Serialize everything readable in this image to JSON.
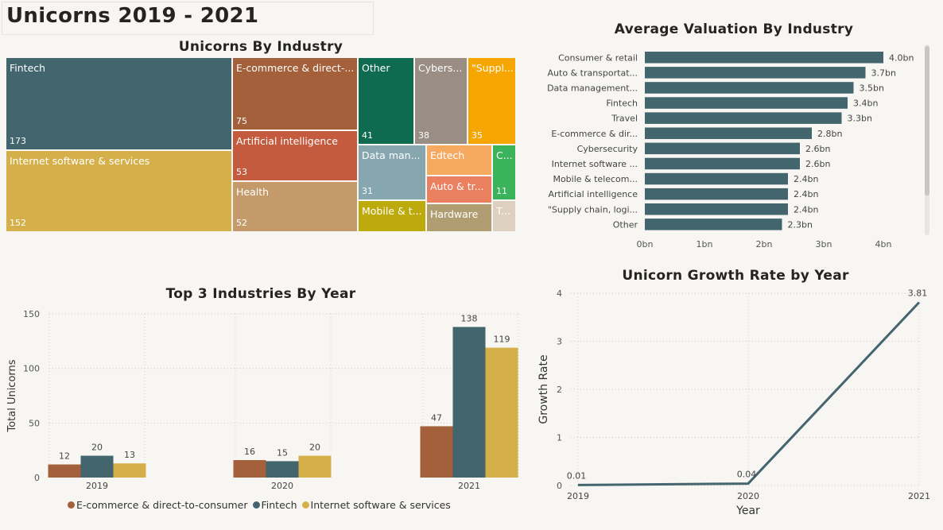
{
  "page": {
    "title": "Unicorns 2019 - 2021"
  },
  "colors": {
    "teal": "#43656e",
    "brown": "#a3603a",
    "gold": "#d5b04a",
    "green": "#0e6b50",
    "taupe": "#9a8e84",
    "orange": "#f5a600",
    "rust": "#c45a3e",
    "tan": "#c49a6a",
    "lightblue": "#86a6b0",
    "peach": "#f5aa60",
    "salmon": "#ea8060",
    "olive": "#bdab0d",
    "khaki": "#b09e72",
    "brightgreen": "#3bb35a",
    "beige": "#ddd0c0"
  },
  "chart_data": [
    {
      "type": "treemap",
      "title": "Unicorns By Industry",
      "cells": [
        {
          "label": "Fintech",
          "value": 173,
          "color": "#43656e"
        },
        {
          "label": "Internet software & services",
          "value": 152,
          "color": "#d5b04a"
        },
        {
          "label": "E-commerce & direct-...",
          "value": 75,
          "color": "#a3603a"
        },
        {
          "label": "Artificial intelligence",
          "value": 53,
          "color": "#c45a3e"
        },
        {
          "label": "Health",
          "value": 52,
          "color": "#c49a6a"
        },
        {
          "label": "Other",
          "value": 41,
          "color": "#0e6b50"
        },
        {
          "label": "Cybers...",
          "value": 38,
          "color": "#9a8e84"
        },
        {
          "label": "\"Suppl...",
          "value": 35,
          "color": "#f5a600"
        },
        {
          "label": "Data man...",
          "value": 31,
          "color": "#86a6b0"
        },
        {
          "label": "Edtech",
          "value": null,
          "color": "#f5aa60"
        },
        {
          "label": "C...",
          "value": 11,
          "color": "#3bb35a"
        },
        {
          "label": "Auto & tr...",
          "value": null,
          "color": "#ea8060"
        },
        {
          "label": "Mobile & t...",
          "value": null,
          "color": "#bdab0d"
        },
        {
          "label": "Hardware",
          "value": null,
          "color": "#b09e72"
        },
        {
          "label": "T...",
          "value": null,
          "color": "#ddd0c0"
        }
      ]
    },
    {
      "type": "bar",
      "orientation": "horizontal",
      "title": "Average Valuation By Industry",
      "categories": [
        "Consumer & retail",
        "Auto & transportat...",
        "Data management...",
        "Fintech",
        "Travel",
        "E-commerce & dir...",
        "Cybersecurity",
        "Internet software ...",
        "Mobile & telecom...",
        "Artificial intelligence",
        "\"Supply chain, logi...",
        "Other"
      ],
      "values": [
        4.0,
        3.7,
        3.5,
        3.4,
        3.3,
        2.8,
        2.6,
        2.6,
        2.4,
        2.4,
        2.4,
        2.3
      ],
      "value_labels": [
        "4.0bn",
        "3.7bn",
        "3.5bn",
        "3.4bn",
        "3.3bn",
        "2.8bn",
        "2.6bn",
        "2.6bn",
        "2.4bn",
        "2.4bn",
        "2.4bn",
        "2.3bn"
      ],
      "xticks": [
        "0bn",
        "1bn",
        "2bn",
        "3bn",
        "4bn"
      ],
      "xlim": [
        0,
        4.0
      ],
      "color": "#43656e"
    },
    {
      "type": "bar",
      "title": "Top 3 Industries By Year",
      "categories": [
        "2019",
        "2020",
        "2021"
      ],
      "series": [
        {
          "name": "E-commerce & direct-to-consumer",
          "values": [
            12,
            16,
            47
          ],
          "color": "#a3603a"
        },
        {
          "name": "Fintech",
          "values": [
            20,
            15,
            138
          ],
          "color": "#43656e"
        },
        {
          "name": "Internet software & services",
          "values": [
            13,
            20,
            119
          ],
          "color": "#d5b04a"
        }
      ],
      "ylabel": "Total Unicorns",
      "yticks": [
        0,
        50,
        100,
        150
      ],
      "ylim": [
        0,
        150
      ],
      "grid": true,
      "legend": "bottom"
    },
    {
      "type": "line",
      "title": "Unicorn Growth Rate by Year",
      "x": [
        "2019",
        "2020",
        "2021"
      ],
      "y": [
        0.01,
        0.04,
        3.81
      ],
      "value_labels": [
        "0.01",
        "0.04",
        "3.81"
      ],
      "xlabel": "Year",
      "ylabel": "Growth Rate",
      "yticks": [
        0,
        1,
        2,
        3,
        4
      ],
      "ylim": [
        0,
        4
      ],
      "grid": true,
      "color": "#43656e"
    }
  ]
}
